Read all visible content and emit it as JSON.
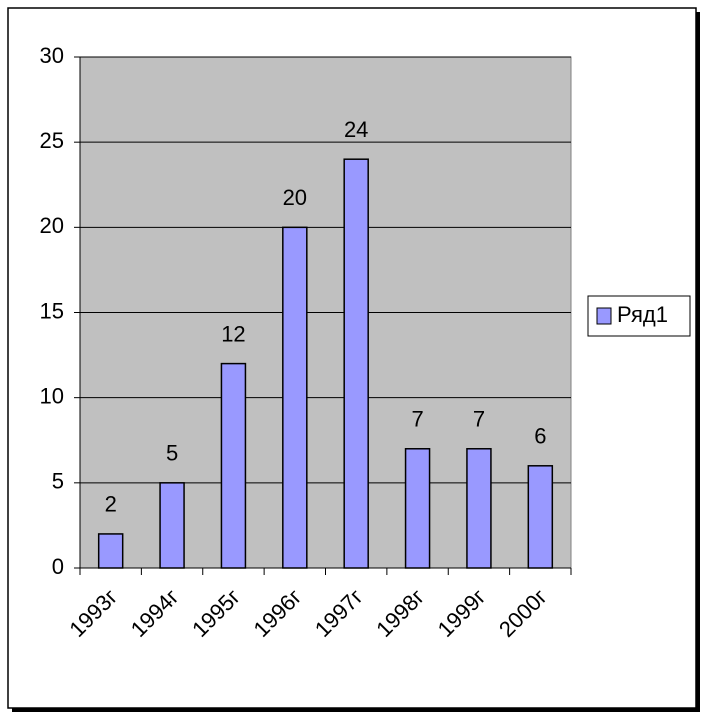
{
  "chart_data": {
    "type": "bar",
    "categories": [
      "1993г",
      "1994г",
      "1995г",
      "1996г",
      "1997г",
      "1998г",
      "1999г",
      "2000г"
    ],
    "series": [
      {
        "name": "Ряд1",
        "color": "#9999ff",
        "values": [
          2,
          5,
          12,
          20,
          24,
          7,
          7,
          6
        ]
      }
    ],
    "ylim": [
      0,
      30
    ],
    "yticks": [
      0,
      5,
      10,
      15,
      20,
      25,
      30
    ],
    "grid": true,
    "legend": "right"
  }
}
